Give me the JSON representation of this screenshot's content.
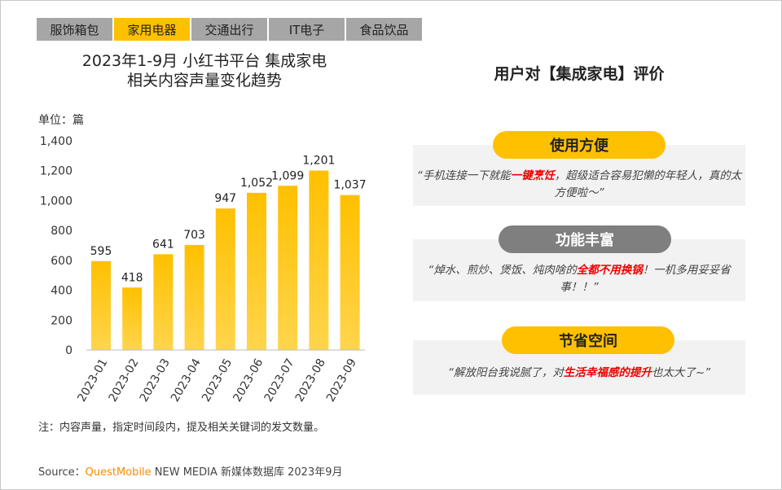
{
  "tabs": [
    {
      "label": "服饰箱包"
    },
    {
      "label": "家用电器",
      "active": true
    },
    {
      "label": "交通出行"
    },
    {
      "label": "IT电子"
    },
    {
      "label": "食品饮品"
    }
  ],
  "chart_title_line1": "2023年1-9月 小红书平台 集成家电",
  "chart_title_line2": "相关内容声量变化趋势",
  "unit_label": "单位：篇",
  "chart_data": {
    "type": "bar",
    "title": "2023年1-9月 小红书平台 集成家电 相关内容声量变化趋势",
    "categories": [
      "2023-01",
      "2023-02",
      "2023-03",
      "2023-04",
      "2023-05",
      "2023-06",
      "2023-07",
      "2023-08",
      "2023-09"
    ],
    "values": [
      595,
      418,
      641,
      703,
      947,
      1052,
      1099,
      1201,
      1037
    ],
    "ylabel": "单位：篇",
    "ylim": [
      0,
      1400
    ],
    "yticks": [
      0,
      200,
      400,
      600,
      800,
      1000,
      1200,
      1400
    ],
    "grid": false,
    "bar_color": "#ffc000"
  },
  "right_title": "用户对【集成家电】评价",
  "reviews": [
    {
      "tag": "使用方便",
      "tag_color": "#ffc000",
      "pre": "“手机连接一下就能",
      "highlight": "一键烹饪",
      "post": "，超级适合容易犯懒的年轻人，真的太方便啦～”"
    },
    {
      "tag": "功能丰富",
      "tag_color": "#7f7f7f",
      "pre": "“焯水、煎炒、煲饭、炖肉啥的",
      "highlight": "全都不用换锅",
      "post": "！一机多用妥妥省事！！”"
    },
    {
      "tag": "节省空间",
      "tag_color": "#ffc000",
      "pre": "“解放阳台我说腻了，对",
      "highlight": "生活幸福感的提升",
      "post": "也太大了~”"
    }
  ],
  "note": "注：内容声量，指定时间段内，提及相关关键词的发文数量。",
  "source": {
    "prefix": "Source：",
    "brand": "QuestMobile",
    "suffix": " NEW MEDIA 新媒体数据库 2023年9月"
  }
}
